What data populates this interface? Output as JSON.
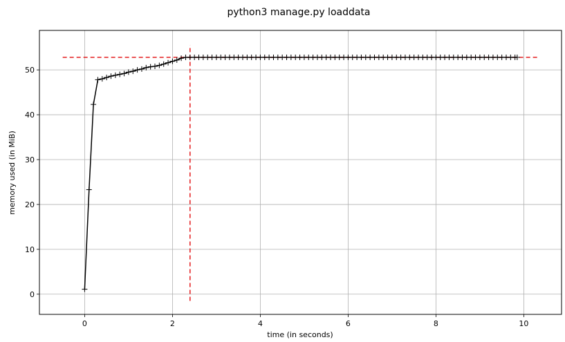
{
  "chart_data": {
    "type": "line",
    "title": "python3 manage.py loaddata",
    "xlabel": "time (in seconds)",
    "ylabel": "memory used (in MiB)",
    "xlim": [
      -1.03,
      10.86
    ],
    "ylim": [
      -4.5,
      58.8
    ],
    "xticks": [
      0,
      2,
      4,
      6,
      8,
      10
    ],
    "yticks": [
      0,
      10,
      20,
      30,
      40,
      50
    ],
    "grid": true,
    "line_color": "#000000",
    "marker": "+",
    "reference_color": "#e41a1c",
    "series": [
      {
        "x": [
          0.0,
          0.1,
          0.2,
          0.3,
          0.4,
          0.5,
          0.6,
          0.7,
          0.8,
          0.9,
          1.0,
          1.1,
          1.2,
          1.3,
          1.4,
          1.5,
          1.6,
          1.7,
          1.8,
          1.9,
          2.0,
          2.1,
          2.2,
          2.3,
          2.4,
          2.5,
          2.6,
          2.7,
          2.8,
          2.9,
          3.0,
          3.1,
          3.2,
          3.3,
          3.4,
          3.5,
          3.6,
          3.7,
          3.8,
          3.9,
          4.0,
          4.1,
          4.2,
          4.3,
          4.4,
          4.5,
          4.6,
          4.7,
          4.8,
          4.9,
          5.0,
          5.1,
          5.2,
          5.3,
          5.4,
          5.5,
          5.6,
          5.7,
          5.8,
          5.9,
          6.0,
          6.1,
          6.2,
          6.3,
          6.4,
          6.5,
          6.6,
          6.7,
          6.8,
          6.9,
          7.0,
          7.1,
          7.2,
          7.3,
          7.4,
          7.5,
          7.6,
          7.7,
          7.8,
          7.9,
          8.0,
          8.1,
          8.2,
          8.3,
          8.4,
          8.5,
          8.6,
          8.7,
          8.8,
          8.9,
          9.0,
          9.1,
          9.2,
          9.3,
          9.4,
          9.5,
          9.6,
          9.7,
          9.8,
          9.85
        ],
        "y": [
          1.1,
          23.3,
          42.3,
          47.8,
          48.0,
          48.3,
          48.6,
          48.8,
          49.0,
          49.2,
          49.5,
          49.7,
          50.0,
          50.2,
          50.5,
          50.7,
          50.8,
          51.0,
          51.3,
          51.6,
          51.9,
          52.2,
          52.6,
          52.8,
          52.8,
          52.8,
          52.8,
          52.8,
          52.8,
          52.8,
          52.8,
          52.8,
          52.8,
          52.8,
          52.8,
          52.8,
          52.8,
          52.8,
          52.8,
          52.8,
          52.8,
          52.8,
          52.8,
          52.8,
          52.8,
          52.8,
          52.8,
          52.8,
          52.8,
          52.8,
          52.8,
          52.8,
          52.8,
          52.8,
          52.8,
          52.8,
          52.8,
          52.8,
          52.8,
          52.8,
          52.8,
          52.8,
          52.8,
          52.8,
          52.8,
          52.8,
          52.8,
          52.8,
          52.8,
          52.8,
          52.8,
          52.8,
          52.8,
          52.8,
          52.8,
          52.8,
          52.8,
          52.8,
          52.8,
          52.8,
          52.8,
          52.8,
          52.8,
          52.8,
          52.8,
          52.8,
          52.8,
          52.8,
          52.8,
          52.8,
          52.8,
          52.8,
          52.8,
          52.8,
          52.8,
          52.8,
          52.8,
          52.8,
          52.8,
          52.8
        ]
      }
    ],
    "reference_lines": {
      "peak_memory": 52.8,
      "peak_time": 2.4,
      "horizontal_x_range": [
        -0.5,
        10.35
      ],
      "vertical_y_range": [
        -1.5,
        55.5
      ]
    }
  }
}
